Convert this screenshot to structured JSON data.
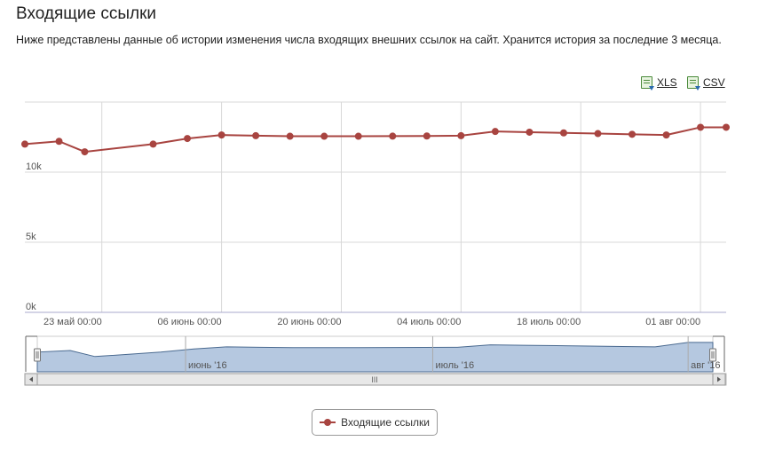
{
  "page": {
    "title": "Входящие ссылки",
    "description": "Ниже представлены данные об истории изменения числа входящих внешних ссылок на сайт. Хранится история за последние 3 месяца."
  },
  "exports": [
    {
      "label": "XLS",
      "icon": "excel-icon"
    },
    {
      "label": "CSV",
      "icon": "excel-icon"
    }
  ],
  "colors": {
    "series": "#a84440",
    "grid": "#d8d8d8",
    "navigator_fill": "#b5c8e0",
    "navigator_line": "#4a6a90"
  },
  "legend": {
    "label": "Входящие ссылки"
  },
  "navigator": {
    "labels": [
      "июнь '16",
      "июль '16",
      "авг '16"
    ],
    "scrollbar_grip": "III"
  },
  "chart_data": {
    "type": "line",
    "series": [
      {
        "name": "Входящие ссылки",
        "x": [
          "2016-05-14",
          "2016-05-18",
          "2016-05-21",
          "2016-05-29",
          "2016-06-02",
          "2016-06-06",
          "2016-06-10",
          "2016-06-14",
          "2016-06-18",
          "2016-06-22",
          "2016-06-26",
          "2016-06-30",
          "2016-07-04",
          "2016-07-08",
          "2016-07-12",
          "2016-07-16",
          "2016-07-20",
          "2016-07-24",
          "2016-07-28",
          "2016-08-01",
          "2016-08-04"
        ],
        "y": [
          12000,
          12200,
          11450,
          12000,
          12400,
          12650,
          12600,
          12560,
          12560,
          12560,
          12570,
          12580,
          12600,
          12900,
          12850,
          12800,
          12750,
          12700,
          12650,
          13200,
          13200
        ]
      }
    ],
    "ylim": [
      0,
      15000
    ],
    "yticks": [
      0,
      5000,
      10000
    ],
    "ytick_labels": [
      "0k",
      "5k",
      "10k"
    ],
    "xrange": [
      "2016-05-14",
      "2016-08-04"
    ],
    "xticks": [
      "2016-05-23",
      "2016-06-06",
      "2016-06-20",
      "2016-07-04",
      "2016-07-18",
      "2016-08-01"
    ],
    "xtick_labels": [
      "23 май 00:00",
      "06 июнь 00:00",
      "20 июнь 00:00",
      "04 июль 00:00",
      "18 июль 00:00",
      "01 авг 00:00"
    ],
    "grid": true,
    "legend_position": "bottom-center"
  }
}
